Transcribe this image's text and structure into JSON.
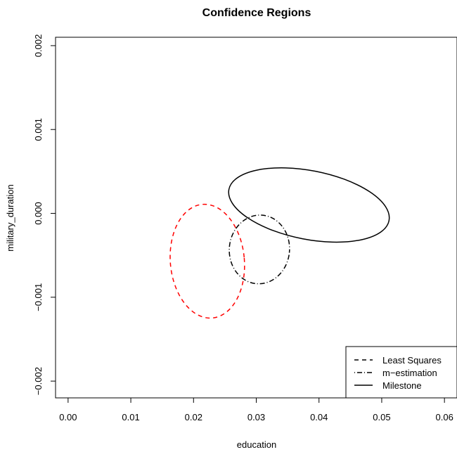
{
  "chart_data": {
    "type": "line",
    "title": "Confidence Regions",
    "xlabel": "education",
    "ylabel": "military_duration",
    "xlim": [
      -0.002,
      0.062
    ],
    "ylim": [
      -0.0022,
      0.0021
    ],
    "xticks": [
      0.0,
      0.01,
      0.02,
      0.03,
      0.04,
      0.05,
      0.06
    ],
    "xtick_labels": [
      "0.00",
      "0.01",
      "0.02",
      "0.03",
      "0.04",
      "0.05",
      "0.06"
    ],
    "yticks": [
      -0.002,
      -0.001,
      0.0,
      0.001,
      0.002
    ],
    "ytick_labels": [
      "−0.002",
      "−0.001",
      "0.000",
      "0.001",
      "0.002"
    ],
    "grid": false,
    "legend_position": "bottom-right",
    "series": [
      {
        "name": "Least Squares",
        "line_style": "dashed",
        "color": "#ff0000",
        "ellipse": {
          "center": [
            0.0222,
            -0.00057
          ],
          "semi_axes": [
            0.0059,
            0.00068
          ],
          "rotation_deg": -5
        }
      },
      {
        "name": "m-estimation",
        "line_style": "dotdash",
        "color": "#000000",
        "ellipse": {
          "center": [
            0.0305,
            -0.00043
          ],
          "semi_axes": [
            0.0048,
            0.00041
          ],
          "rotation_deg": 5
        }
      },
      {
        "name": "Milestone",
        "line_style": "solid",
        "color": "#000000",
        "ellipse": {
          "center": [
            0.0384,
            0.0001
          ],
          "semi_axes": [
            0.013,
            0.00041
          ],
          "rotation_deg": 11
        }
      }
    ],
    "legend": [
      {
        "label": "Least Squares",
        "line_style": "dashed"
      },
      {
        "label": "m−estimation",
        "line_style": "dotdash"
      },
      {
        "label": "Milestone",
        "line_style": "solid"
      }
    ]
  }
}
